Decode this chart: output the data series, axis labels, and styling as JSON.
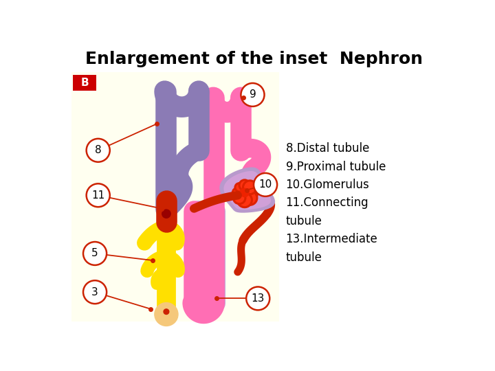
{
  "title": "Enlargement of the inset  Nephron",
  "title_fontsize": 18,
  "title_fontweight": "bold",
  "bg_color": "#FFFFF0",
  "label_color": "#CC0000",
  "label_fontsize": 12,
  "legend_text": "8.Distal tubule\n9.Proximal tubule\n10.Glomerulus\n11.Connecting\ntubule\n13.Intermediate\ntubule",
  "legend_fontsize": 12,
  "b_bg": "#CC0000",
  "b_color": "white",
  "purple": "#8B7BB5",
  "pink": "#FF6EB4",
  "dark_purple": "#7B6AA8",
  "light_purple": "#C4A8D8",
  "red": "#CC2200",
  "yellow": "#FFE000",
  "peach": "#F5C87A",
  "dark_red": "#990000",
  "glom_outer": "#B899CC",
  "glom_inner": "#D0A0D8"
}
